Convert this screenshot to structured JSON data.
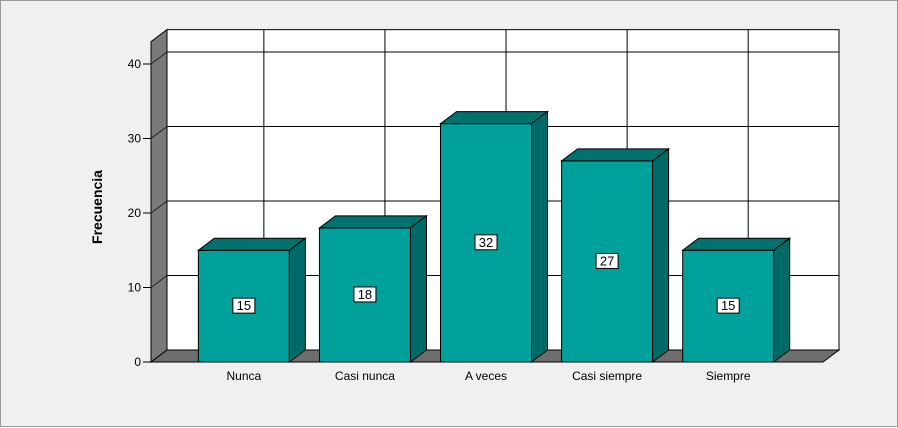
{
  "chart_data": {
    "type": "bar",
    "categories": [
      "Nunca",
      "Casi nunca",
      "A veces",
      "Casi siempre",
      "Siempre"
    ],
    "values": [
      15,
      18,
      32,
      27,
      15
    ],
    "data_labels": [
      "15",
      "18",
      "32",
      "27",
      "15"
    ],
    "ylabel": "Frecuencia",
    "xlabel": "",
    "ylim": [
      0,
      43
    ],
    "yticks": [
      0,
      10,
      20,
      30,
      40
    ],
    "ytick_labels": [
      "0",
      "10",
      "20",
      "30",
      "40"
    ],
    "grid": true,
    "three_d": true,
    "colors": {
      "bar_front": "#00a19a",
      "bar_side": "#006b66",
      "bar_top": "#00716c",
      "left_wall": "#7a7a7a",
      "floor": "#6e6e6e",
      "back_wall": "#ffffff",
      "grid": "#000000",
      "background": "#f0f0f0"
    }
  }
}
